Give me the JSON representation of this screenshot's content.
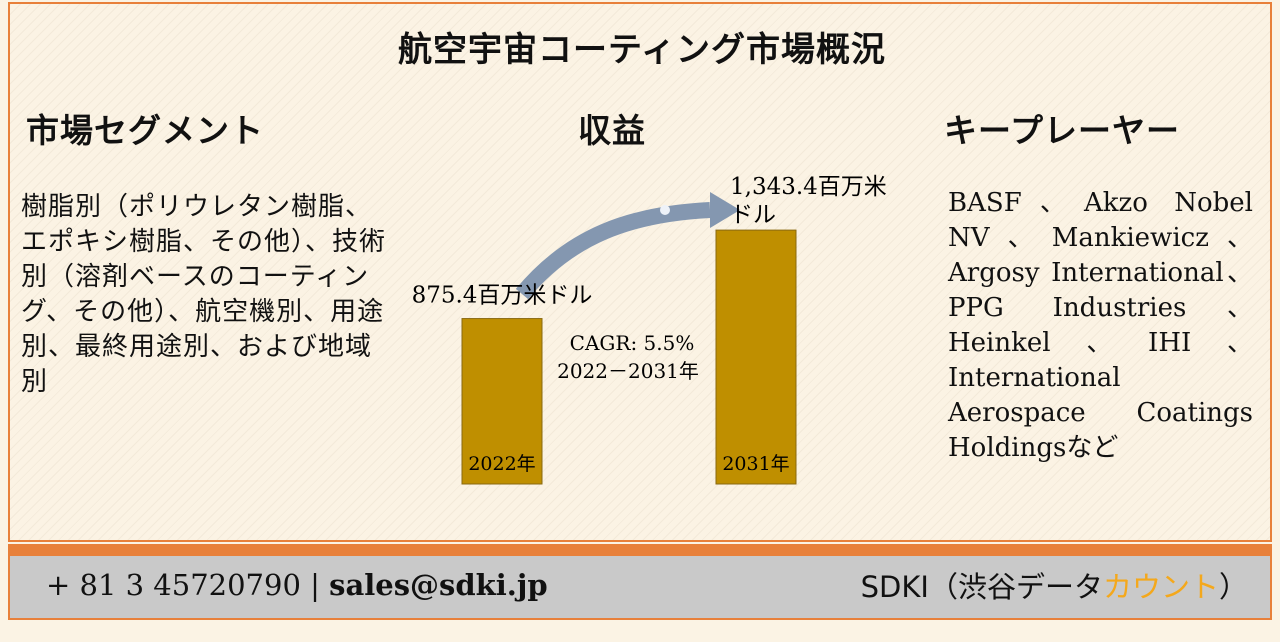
{
  "title": "航空宇宙コーティング市場概況",
  "segments": {
    "heading": "市場セグメント",
    "text": "樹脂別（ポリウレタン樹脂、エポキシ樹脂、その他）、技術別（溶剤ベースのコーティング、その他）、航空機別、用途別、最終用途別、および地域別"
  },
  "revenue": {
    "heading": "収益",
    "cagr_label": "CAGR: 5.5%",
    "cagr_period": "2022－2031年"
  },
  "key_players": {
    "heading": "キープレーヤー",
    "text": "BASF、Akzo Nobel NV、Mankiewicz、Argosy International、PPG Industries、Heinkel、IHI、International Aerospace Coatings Holdingsなど"
  },
  "chart_data": {
    "type": "bar",
    "categories": [
      "2022年",
      "2031年"
    ],
    "values": [
      875.4,
      1343.4
    ],
    "value_labels": [
      "875.4百万米ドル",
      "1,343.4百万米ドル"
    ],
    "bar_color": "#bf8f00",
    "arrow_color": "#8497b0"
  },
  "footer": {
    "phone": "+ 81 3 45720790",
    "separator": "|",
    "email": "sales@sdki.jp",
    "brand_prefix": "SDKI（渋谷デー",
    "brand_mid": "タ",
    "brand_accent": "カウント",
    "brand_suffix": "）",
    "accent_color": "#f4a81c",
    "band_color": "#e8803a",
    "footer_bg": "#c9c9c9"
  }
}
